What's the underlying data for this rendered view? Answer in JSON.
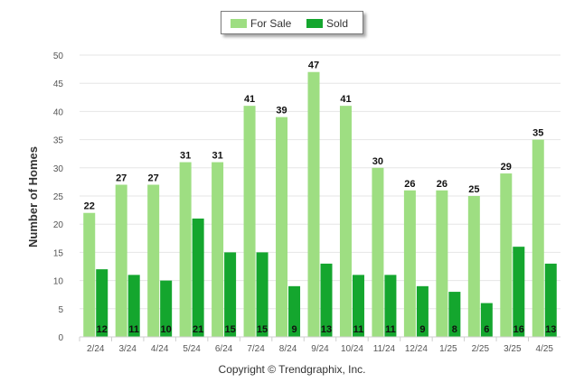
{
  "chart_data": {
    "type": "bar",
    "categories": [
      "2/24",
      "3/24",
      "4/24",
      "5/24",
      "6/24",
      "7/24",
      "8/24",
      "9/24",
      "10/24",
      "11/24",
      "12/24",
      "1/25",
      "2/25",
      "3/25",
      "4/25"
    ],
    "series": [
      {
        "name": "For Sale",
        "color": "#9ede82",
        "values": [
          22,
          27,
          27,
          31,
          31,
          41,
          39,
          47,
          41,
          30,
          26,
          26,
          25,
          29,
          35
        ]
      },
      {
        "name": "Sold",
        "color": "#14a62e",
        "values": [
          12,
          11,
          10,
          21,
          15,
          15,
          9,
          13,
          11,
          11,
          9,
          8,
          6,
          16,
          13
        ]
      }
    ],
    "xlabel": "",
    "ylabel": "Number of Homes",
    "ylim": [
      0,
      50
    ],
    "yticks": [
      0,
      5,
      10,
      15,
      20,
      25,
      30,
      35,
      40,
      45,
      50
    ],
    "grid": true,
    "legend_position": "top-center"
  },
  "footer": "Copyright © Trendgraphix, Inc."
}
